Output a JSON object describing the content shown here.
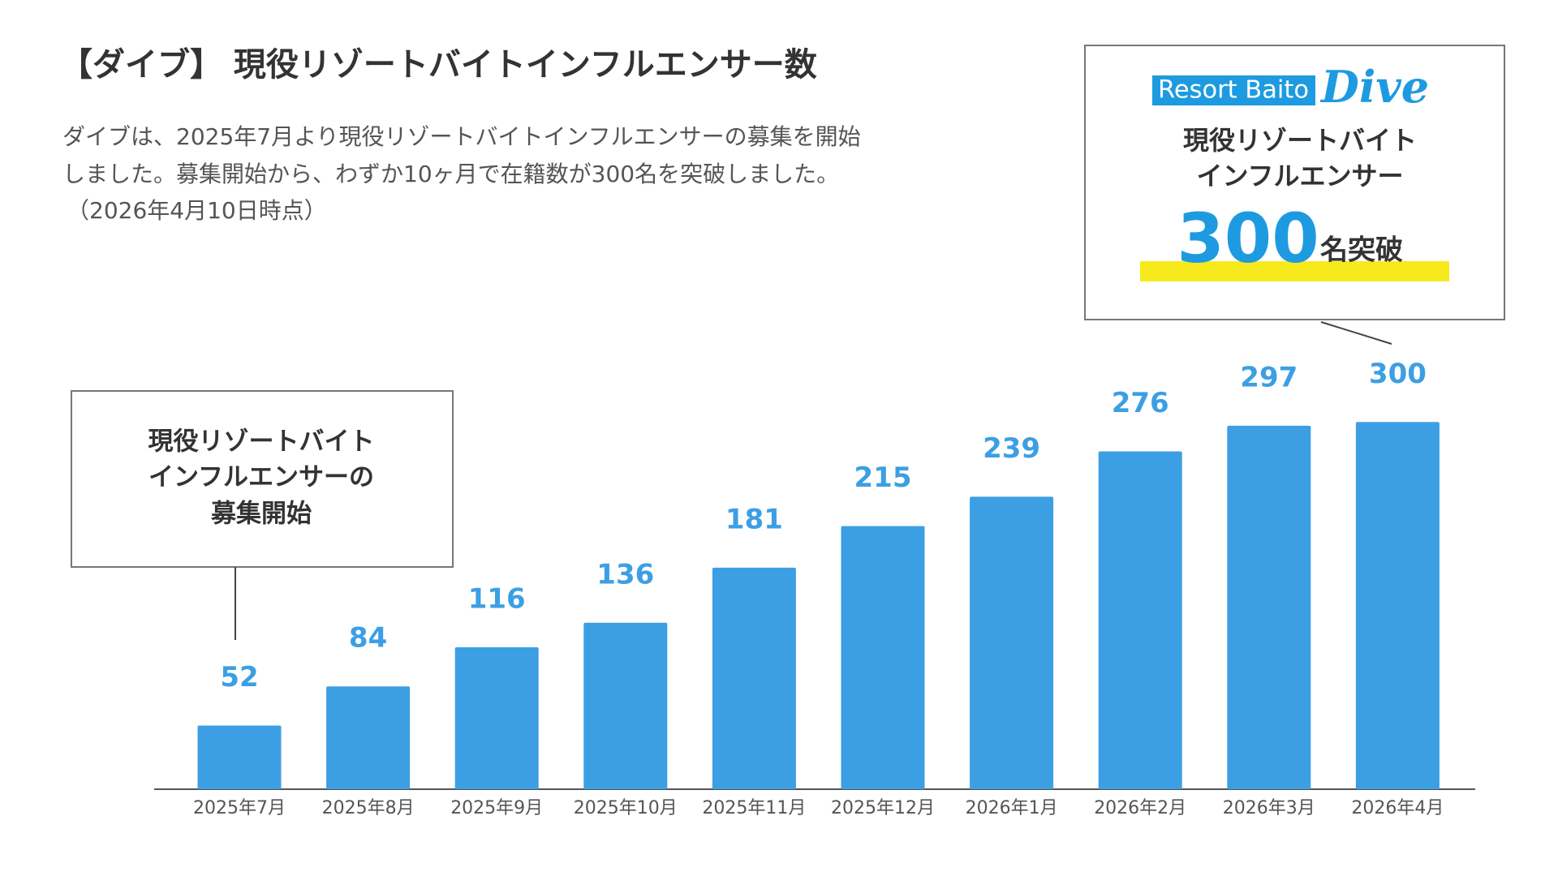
{
  "chart_data": {
    "type": "bar",
    "title": "【ダイブ】 現役リゾートバイトインフルエンサー数",
    "description": [
      "ダイブは、2025年7月より現役リゾートバイトインフルエンサーの募集を開始",
      "しました。募集開始から、わずか10ヶ月で在籍数が300名を突破しました。",
      "（2026年4月10日時点）"
    ],
    "categories": [
      "2025年7月",
      "2025年8月",
      "2025年9月",
      "2025年10月",
      "2025年11月",
      "2025年12月",
      "2026年1月",
      "2026年2月",
      "2026年3月",
      "2026年4月"
    ],
    "values": [
      52,
      84,
      116,
      136,
      181,
      215,
      239,
      276,
      297,
      300
    ],
    "color": "#3d9fe3",
    "callout": [
      "現役リゾートバイト",
      "インフルエンサーの",
      "募集開始"
    ],
    "badge": {
      "logo": "Resort Baito",
      "logo_script": "Dive",
      "lines": [
        "現役リゾートバイト",
        "インフルエンサー"
      ],
      "number": "300",
      "suffix": "名突破"
    }
  }
}
